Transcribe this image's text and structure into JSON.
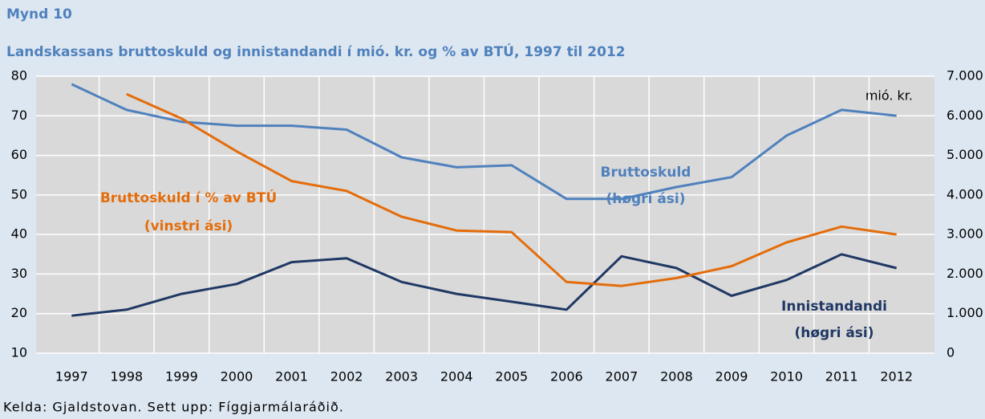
{
  "chart_data": {
    "type": "line",
    "title": "Mynd 10",
    "subtitle": "Landskassans bruttoskuld og innistandandi í mió. kr. og % av BTÚ, 1997 til 2012",
    "source": "Kelda: Gjaldstovan. Sett upp: Fíggjarmálaráðið.",
    "y2_label": "mió. kr.",
    "categories": [
      "1997",
      "1998",
      "1999",
      "2000",
      "2001",
      "2002",
      "2003",
      "2004",
      "2005",
      "2006",
      "2007",
      "2008",
      "2009",
      "2010",
      "2011",
      "2012"
    ],
    "series": [
      {
        "name": "Bruttoskuld",
        "color": "#4f81bd",
        "axis": "y2",
        "values": [
          6800,
          6150,
          5850,
          5750,
          5750,
          5650,
          4950,
          4700,
          4750,
          3900,
          3900,
          4200,
          4450,
          5500,
          6150,
          6000
        ]
      },
      {
        "name": "Innistandandi",
        "color": "#1f3864",
        "axis": "y2",
        "values": [
          950,
          1100,
          1500,
          1750,
          2300,
          2400,
          1800,
          1500,
          1300,
          1100,
          2450,
          2150,
          1450,
          1850,
          2500,
          2150
        ]
      },
      {
        "name": "Bruttoskuld í % av BTÚ",
        "color": "#e46c0a",
        "values": [
          null,
          75.5,
          69.3,
          61,
          53.5,
          51,
          44.5,
          41,
          40.6,
          28,
          27,
          29,
          32,
          38,
          42,
          40
        ]
      }
    ],
    "annotations": [
      {
        "text": "Bruttoskuld",
        "color": "#4f81bd"
      },
      {
        "text": "(høgri ási)",
        "color": "#4f81bd"
      },
      {
        "text": "Bruttoskuld í % av BTÚ",
        "color": "#e46c0a"
      },
      {
        "text": "(vinstri ási)",
        "color": "#e46c0a"
      },
      {
        "text": "Innistandandi",
        "color": "#1f3864"
      },
      {
        "text": "(høgri ási)",
        "color": "#1f3864"
      }
    ],
    "ylim": [
      10,
      80
    ],
    "yticks": [
      10,
      20,
      30,
      40,
      50,
      60,
      70,
      80
    ],
    "y2lim": [
      0,
      7000
    ],
    "y2ticks": [
      0,
      {
        "value": 1000,
        "label": "1.000"
      },
      {
        "value": 2000,
        "label": "2.000"
      },
      {
        "value": 3000,
        "label": "3.000"
      },
      {
        "value": 4000,
        "label": "4.000"
      },
      {
        "value": 5000,
        "label": "5.000"
      },
      {
        "value": 6000,
        "label": "6.000"
      },
      {
        "value": 7000,
        "label": "7.000"
      }
    ],
    "grid": true
  }
}
